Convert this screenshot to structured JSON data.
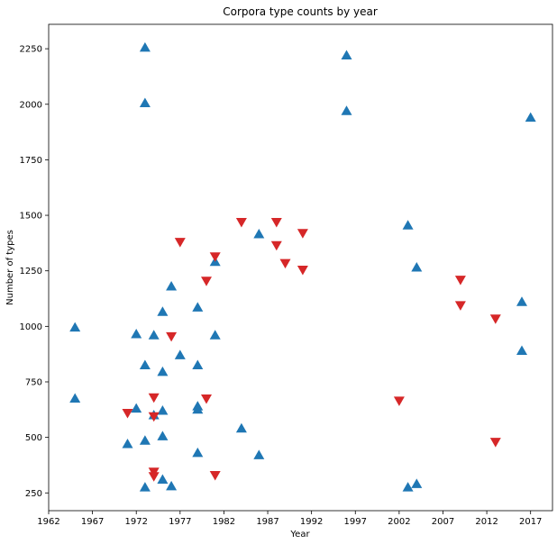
{
  "chart_data": {
    "type": "scatter",
    "title": "Corpora type counts by year",
    "xlabel": "Year",
    "ylabel": "Number of types",
    "xlim": [
      1962,
      2019.5
    ],
    "ylim": [
      170,
      2360
    ],
    "xticks": [
      1962,
      1967,
      1972,
      1977,
      1982,
      1987,
      1992,
      1997,
      2002,
      2007,
      2012,
      2017
    ],
    "yticks": [
      250,
      500,
      750,
      1000,
      1250,
      1500,
      1750,
      2000,
      2250
    ],
    "grid": false,
    "legend": "none",
    "series": [
      {
        "marker": "triangle-up",
        "color": "#1f77b4",
        "points": [
          [
            1965,
            995
          ],
          [
            1965,
            675
          ],
          [
            1971,
            470
          ],
          [
            1972,
            965
          ],
          [
            1972,
            630
          ],
          [
            1973,
            2255
          ],
          [
            1973,
            2005
          ],
          [
            1973,
            825
          ],
          [
            1973,
            485
          ],
          [
            1973,
            275
          ],
          [
            1974,
            960
          ],
          [
            1974,
            600
          ],
          [
            1975,
            1065
          ],
          [
            1975,
            795
          ],
          [
            1975,
            620
          ],
          [
            1975,
            505
          ],
          [
            1975,
            310
          ],
          [
            1976,
            1180
          ],
          [
            1976,
            280
          ],
          [
            1977,
            870
          ],
          [
            1979,
            1085
          ],
          [
            1979,
            825
          ],
          [
            1979,
            640
          ],
          [
            1979,
            625
          ],
          [
            1979,
            430
          ],
          [
            1981,
            1290
          ],
          [
            1981,
            960
          ],
          [
            1984,
            540
          ],
          [
            1986,
            1415
          ],
          [
            1986,
            420
          ],
          [
            1996,
            2220
          ],
          [
            1996,
            1970
          ],
          [
            2003,
            1455
          ],
          [
            2003,
            275
          ],
          [
            2004,
            1265
          ],
          [
            2004,
            290
          ],
          [
            2016,
            1110
          ],
          [
            2016,
            890
          ],
          [
            2017,
            1940
          ]
        ]
      },
      {
        "marker": "triangle-down",
        "color": "#d62728",
        "points": [
          [
            1971,
            610
          ],
          [
            1974,
            680
          ],
          [
            1974,
            595
          ],
          [
            1974,
            345
          ],
          [
            1974,
            325
          ],
          [
            1976,
            955
          ],
          [
            1977,
            1380
          ],
          [
            1980,
            1205
          ],
          [
            1980,
            675
          ],
          [
            1981,
            1315
          ],
          [
            1981,
            330
          ],
          [
            1984,
            1470
          ],
          [
            1988,
            1470
          ],
          [
            1988,
            1365
          ],
          [
            1989,
            1285
          ],
          [
            1991,
            1420
          ],
          [
            1991,
            1255
          ],
          [
            2002,
            665
          ],
          [
            2009,
            1210
          ],
          [
            2009,
            1095
          ],
          [
            2013,
            1035
          ],
          [
            2013,
            480
          ]
        ]
      }
    ]
  }
}
